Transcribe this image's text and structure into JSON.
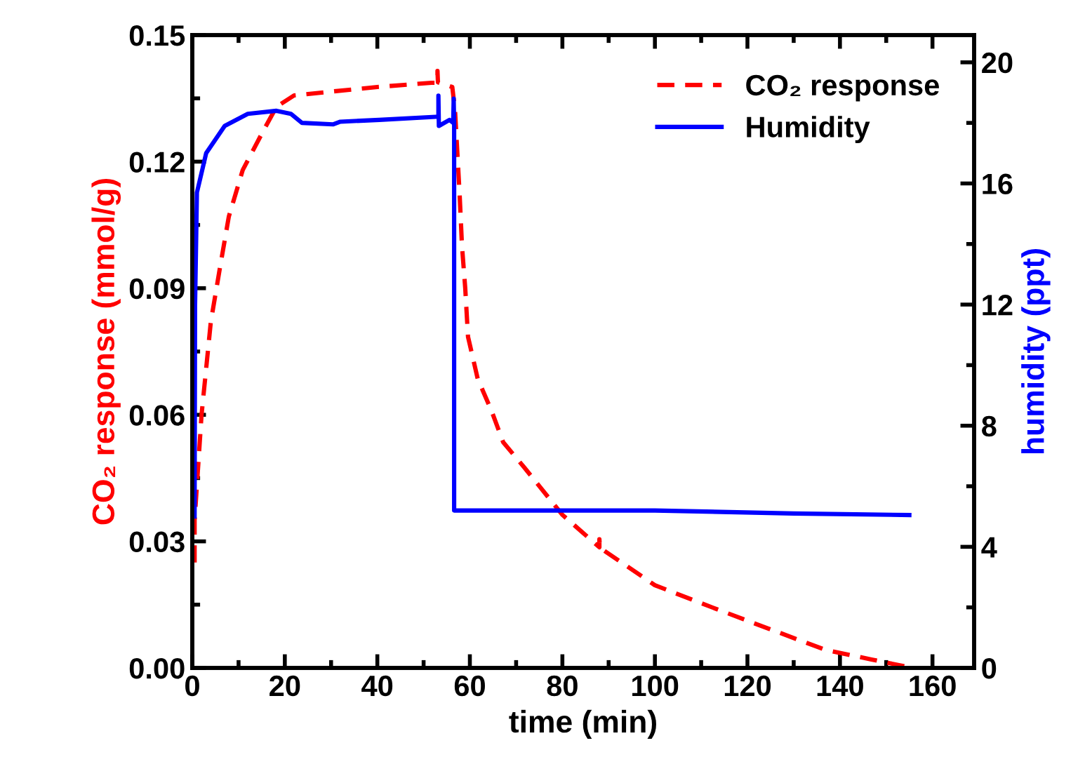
{
  "chart_data": {
    "type": "line",
    "xlabel": "time (min)",
    "ylabel": "CO₂ response (mmol/g)",
    "y2label": "humidity (ppt)",
    "xlim": [
      0,
      169
    ],
    "xticks": [
      0,
      20,
      40,
      60,
      80,
      100,
      120,
      140,
      160
    ],
    "ylim": [
      0,
      0.15
    ],
    "yticks": [
      {
        "value": 0,
        "label": "0.00"
      },
      {
        "value": 0.03,
        "label": "0.03"
      },
      {
        "value": 0.06,
        "label": "0.06"
      },
      {
        "value": 0.09,
        "label": "0.09"
      },
      {
        "value": 0.12,
        "label": "0.12"
      },
      {
        "value": 0.15,
        "label": "0.15"
      }
    ],
    "y2lim": [
      0,
      20.9
    ],
    "y2ticks": [
      0,
      4,
      8,
      12,
      16,
      20
    ],
    "legend": "top right",
    "grid": false,
    "series": [
      {
        "name": "CO₂ response",
        "color": "#ff0000",
        "line_style": "dashed",
        "x": [
          0.5,
          0.5,
          2,
          4,
          6,
          7.9,
          10.9,
          15.2,
          18.2,
          22,
          30,
          40,
          51.7,
          53,
          53,
          53.1,
          56.2,
          56.8,
          57.3,
          57.8,
          58.3,
          59,
          59.6,
          61.7,
          64.7,
          67.2,
          71.7,
          80,
          88,
          88,
          88.1,
          100,
          112.5,
          124.6,
          136.8,
          146.8,
          154.4
        ],
        "values": [
          0.025,
          0.035,
          0.06,
          0.082,
          0.095,
          0.107,
          0.118,
          0.127,
          0.133,
          0.1357,
          0.1366,
          0.1377,
          0.1387,
          0.1387,
          0.1415,
          0.1388,
          0.1377,
          0.132,
          0.122,
          0.112,
          0.1,
          0.09,
          0.0785,
          0.0685,
          0.0609,
          0.0535,
          0.0476,
          0.0363,
          0.0286,
          0.0305,
          0.0285,
          0.0196,
          0.0143,
          0.0093,
          0.0043,
          0.002,
          0.0003
        ]
      },
      {
        "name": "Humidity",
        "color": "#0000ff",
        "line_style": "solid",
        "axis": "y2",
        "x": [
          0.5,
          0.6,
          1,
          3,
          7,
          12,
          18.2,
          21.3,
          23.7,
          30.4,
          32,
          40.4,
          52.6,
          53.2,
          53.2,
          53.3,
          55.6,
          56.4,
          56.5,
          56.6,
          56.6,
          57,
          70,
          100,
          130,
          155
        ],
        "values": [
          5.0,
          12.0,
          15.7,
          17.0,
          17.9,
          18.3,
          18.4,
          18.3,
          18.0,
          17.95,
          18.04,
          18.1,
          18.2,
          18.2,
          18.9,
          17.9,
          18.1,
          18.0,
          18.8,
          18.0,
          5.2,
          5.2,
          5.2,
          5.2,
          5.1,
          5.05
        ]
      }
    ]
  }
}
